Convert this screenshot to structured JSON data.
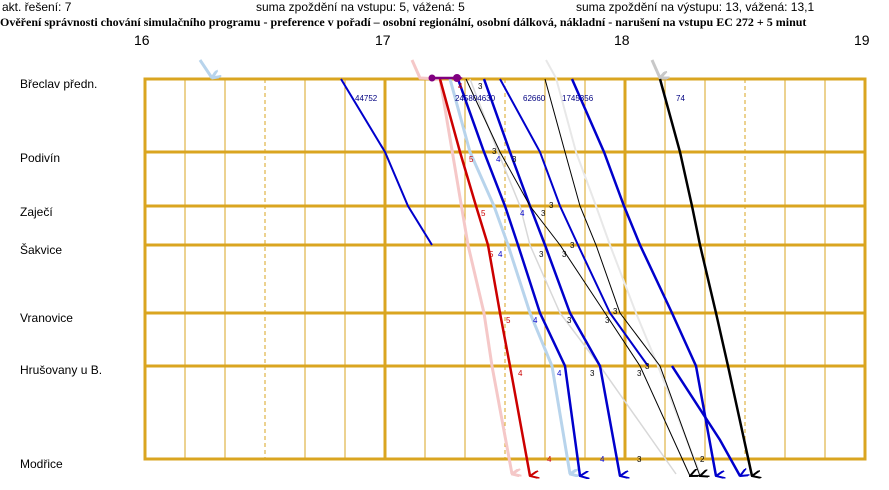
{
  "header": {
    "solution": "akt. řešení: 7",
    "input_delay": "suma zpoždění na vstupu: 5,  vážená: 5",
    "output_delay": "suma zpoždění na výstupu: 13,  vážená: 13,1",
    "title": "Ověření správnosti chování simulačního programu - preference v pořadí – osobní regionální, osobní dálková, nákladní  - narušení na vstupu EC 272 + 5 minut"
  },
  "hours": [
    "16",
    "17",
    "18",
    "19"
  ],
  "stations": [
    "Břeclav předn.",
    "Podivín",
    "Zaječí",
    "Šakvice",
    "Vranovice",
    "Hrušovany u B.",
    "Modřice"
  ],
  "train_numbers": {
    "n44752": "44752",
    "n62660": "62660",
    "n74": "74",
    "cluster_a": "2​4​5​8​0​4​6​3​0",
    "cluster_b": "1​7​4​5​3​5​6"
  },
  "delay_marks": [
    "4",
    "3",
    "5",
    "4",
    "3",
    "3",
    "5",
    "4",
    "3",
    "3",
    "5",
    "4",
    "3",
    "3",
    "3",
    "5",
    "4",
    "3",
    "3",
    "3",
    "4",
    "4",
    "3",
    "3",
    "4",
    "4",
    "3",
    "3",
    "2"
  ],
  "colors": {
    "grid": "#DAA520",
    "regional": "#0000CC",
    "long_distance": "#CC0000",
    "freight": "#000000",
    "input_regional": "#B8D4EC",
    "input_long_distance": "#F5C8C8",
    "input_freight": "#C8C8C8",
    "accent": "#800080"
  }
}
